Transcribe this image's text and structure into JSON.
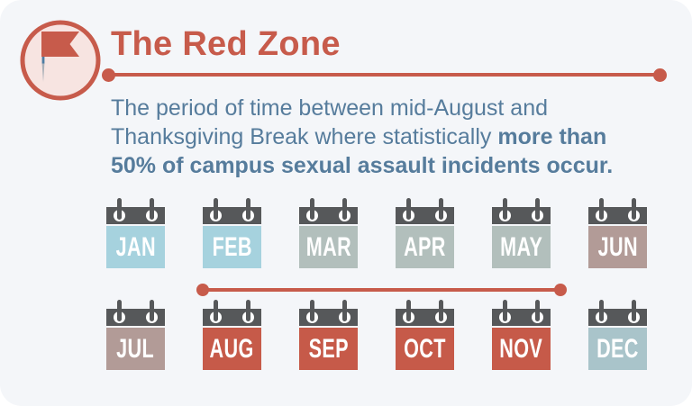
{
  "header": {
    "title": "The Red Zone",
    "flag_icon": "red-pennant-flag-on-pin"
  },
  "intro": {
    "lines": [
      {
        "normal": "The period of time between mid-August and",
        "bold": ""
      },
      {
        "normal": "Thanksgiving Break where statistically ",
        "bold": "more than"
      },
      {
        "normal": "",
        "bold": "50% of campus sexual assault incidents occur."
      }
    ]
  },
  "calendar": {
    "months": [
      {
        "label": "JAN",
        "color": "#a6d2de"
      },
      {
        "label": "FEB",
        "color": "#a6d2de"
      },
      {
        "label": "MAR",
        "color": "#b2bfbc"
      },
      {
        "label": "APR",
        "color": "#b2bfbc"
      },
      {
        "label": "MAY",
        "color": "#b2bfbc"
      },
      {
        "label": "JUN",
        "color": "#b29b97"
      },
      {
        "label": "JUL",
        "color": "#b29b97"
      },
      {
        "label": "AUG",
        "color": "#c65a49"
      },
      {
        "label": "SEP",
        "color": "#c65a49"
      },
      {
        "label": "OCT",
        "color": "#c65a49"
      },
      {
        "label": "NOV",
        "color": "#c65a49"
      },
      {
        "label": "DEC",
        "color": "#a9c4ca"
      }
    ],
    "red_zone_span": {
      "from": "AUG",
      "to": "NOV"
    }
  },
  "colors": {
    "accent_red": "#c75b4b",
    "text_blue": "#567c9c",
    "card_background": "#f4f6f9",
    "calendar_header_gray": "#56585a",
    "flag_badge_fill": "#f7e4e1"
  }
}
